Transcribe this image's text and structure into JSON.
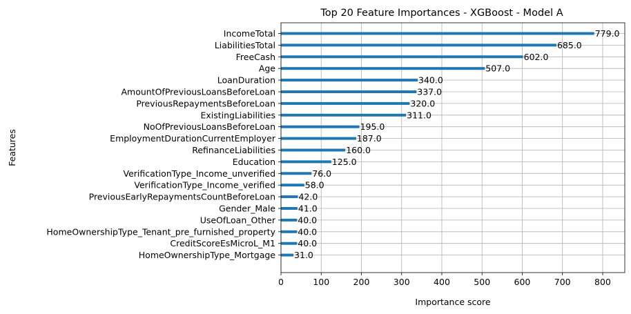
{
  "chart_data": {
    "type": "bar",
    "orientation": "horizontal",
    "title": "Top 20 Feature Importances - XGBoost - Model A",
    "xlabel": "Importance score",
    "ylabel": "Features",
    "xlim": [
      0,
      855
    ],
    "xticks": [
      "0",
      "100",
      "200",
      "300",
      "400",
      "500",
      "600",
      "700",
      "800"
    ],
    "grid": true,
    "bar_color": "#1f77b4",
    "categories": [
      "IncomeTotal",
      "LiabilitiesTotal",
      "FreeCash",
      "Age",
      "LoanDuration",
      "AmountOfPreviousLoansBeforeLoan",
      "PreviousRepaymentsBeforeLoan",
      "ExistingLiabilities",
      "NoOfPreviousLoansBeforeLoan",
      "EmploymentDurationCurrentEmployer",
      "RefinanceLiabilities",
      "Education",
      "VerificationType_Income_unverified",
      "VerificationType_Income_verified",
      "PreviousEarlyRepaymentsCountBeforeLoan",
      "Gender_Male",
      "UseOfLoan_Other",
      "HomeOwnershipType_Tenant_pre_furnished_property",
      "CreditScoreEsMicroL_M1",
      "HomeOwnershipType_Mortgage"
    ],
    "values": [
      779.0,
      685.0,
      602.0,
      507.0,
      340.0,
      337.0,
      320.0,
      311.0,
      195.0,
      187.0,
      160.0,
      125.0,
      76.0,
      58.0,
      42.0,
      41.0,
      40.0,
      40.0,
      40.0,
      31.0
    ],
    "value_labels": [
      "779.0",
      "685.0",
      "602.0",
      "507.0",
      "340.0",
      "337.0",
      "320.0",
      "311.0",
      "195.0",
      "187.0",
      "160.0",
      "125.0",
      "76.0",
      "58.0",
      "42.0",
      "41.0",
      "40.0",
      "40.0",
      "40.0",
      "31.0"
    ]
  }
}
